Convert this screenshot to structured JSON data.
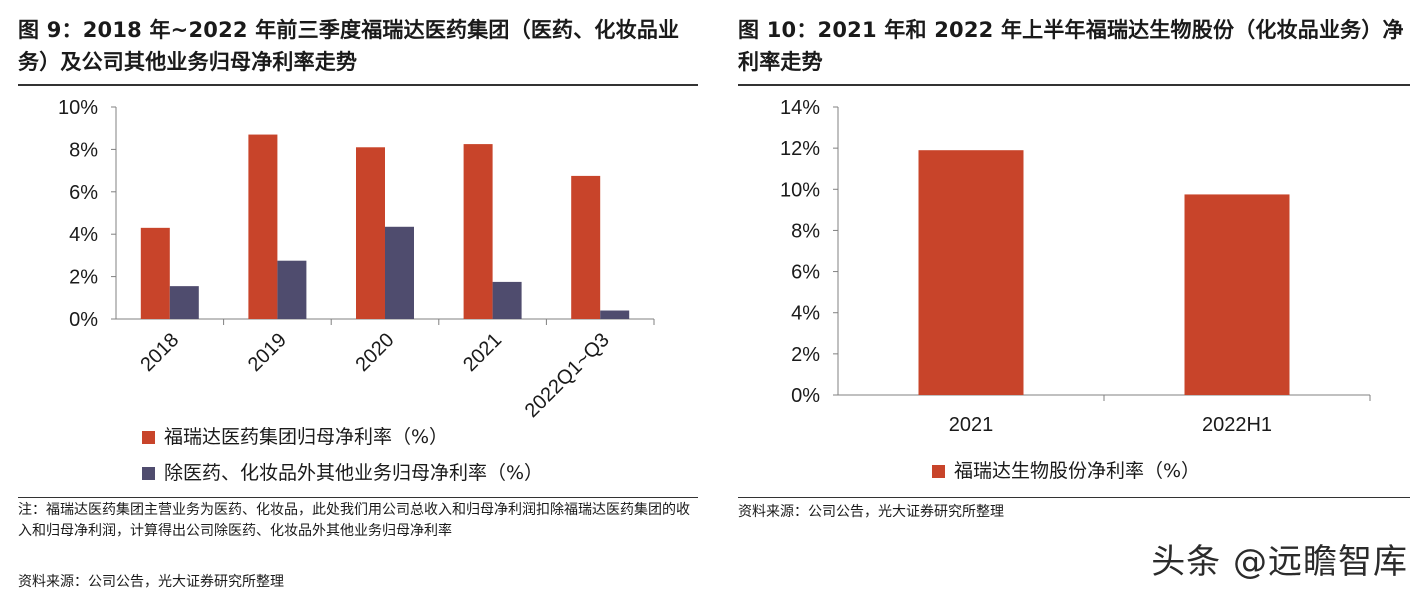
{
  "colors": {
    "series1": "#c8442a",
    "series2": "#4f4c6e",
    "axis": "#808080"
  },
  "left": {
    "title": "图 9：2018 年~2022 年前三季度福瑞达医药集团（医药、化妆品业务）及公司其他业务归母净利率走势",
    "note": "注：福瑞达医药集团主营业务为医药、化妆品，此处我们用公司总收入和归母净利润扣除福瑞达医药集团的收入和归母净利润，计算得出公司除医药、化妆品外其他业务归母净利率",
    "source": "资料来源：公司公告，光大证券研究所整理"
  },
  "right": {
    "title": "图 10：2021 年和 2022 年上半年福瑞达生物股份（化妆品业务）净利率走势",
    "source": "资料来源：公司公告，光大证券研究所整理"
  },
  "watermark": "头条 @远瞻智库",
  "chart_data": [
    {
      "type": "bar",
      "categories": [
        "2018",
        "2019",
        "2020",
        "2021",
        "2022Q1~Q3"
      ],
      "series": [
        {
          "name": "福瑞达医药集团归母净利率（%）",
          "values": [
            4.3,
            8.7,
            8.1,
            8.25,
            6.75
          ]
        },
        {
          "name": "除医药、化妆品外其他业务归母净利率（%）",
          "values": [
            1.55,
            2.75,
            4.35,
            1.75,
            0.4
          ]
        }
      ],
      "y_ticks": [
        "0%",
        "2%",
        "4%",
        "6%",
        "8%",
        "10%"
      ],
      "ylim": [
        0,
        10
      ],
      "grid": false,
      "legend_position": "bottom-left"
    },
    {
      "type": "bar",
      "categories": [
        "2021",
        "2022H1"
      ],
      "series": [
        {
          "name": "福瑞达生物股份净利率（%）",
          "values": [
            11.9,
            9.75
          ]
        }
      ],
      "y_ticks": [
        "0%",
        "2%",
        "4%",
        "6%",
        "8%",
        "10%",
        "12%",
        "14%"
      ],
      "ylim": [
        0,
        14
      ],
      "grid": false,
      "legend_position": "bottom-center"
    }
  ]
}
